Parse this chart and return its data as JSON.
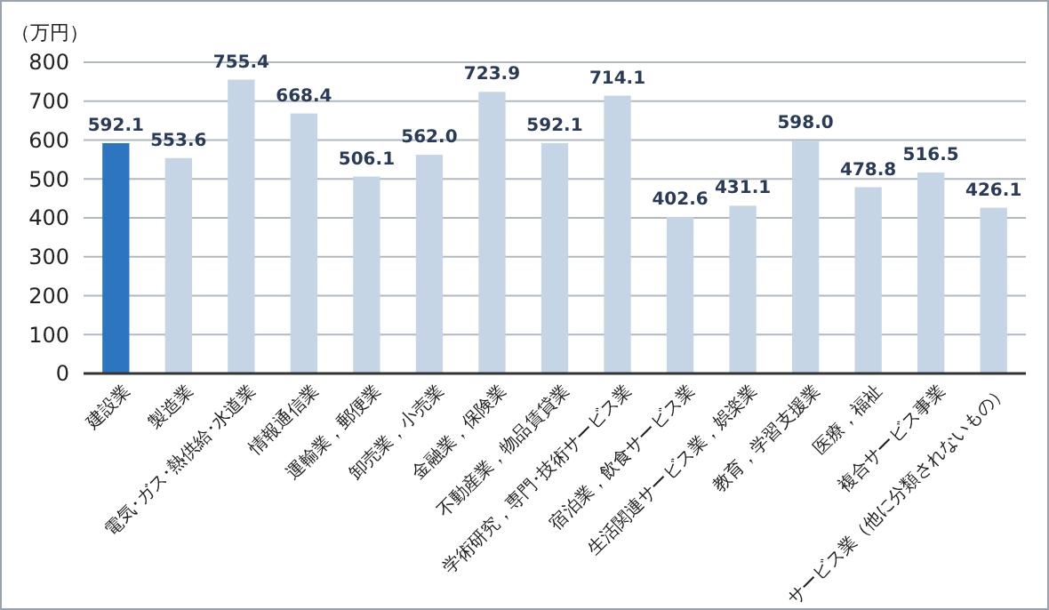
{
  "chart_data": {
    "type": "bar",
    "ylabel": "（万円）",
    "categories": [
      "建設業",
      "製造業",
      "電気･ガス･熱供給･水道業",
      "情報通信業",
      "運輸業，郵便業",
      "卸売業，小売業",
      "金融業，保険業",
      "不動産業，物品賃貸業",
      "学術研究，専門･技術サービス業",
      "宿泊業，飲食サービス業",
      "生活関連サービス業，娯楽業",
      "教育，学習支援業",
      "医療，福祉",
      "複合サービス事業",
      "サービス業（他に分類されないもの）"
    ],
    "values": [
      592.1,
      553.6,
      755.4,
      668.4,
      506.1,
      562.0,
      723.9,
      592.1,
      714.1,
      402.6,
      431.1,
      598.0,
      478.8,
      516.5,
      426.1
    ],
    "colors": [
      "#2e75c0",
      "#c5d5e5",
      "#c5d5e5",
      "#c5d5e5",
      "#c5d5e5",
      "#c5d5e5",
      "#c5d5e5",
      "#c5d5e5",
      "#c5d5e5",
      "#c5d5e5",
      "#c5d5e5",
      "#c5d5e5",
      "#c5d5e5",
      "#c5d5e5",
      "#c5d5e5"
    ],
    "ylim": [
      0,
      800
    ],
    "yticks": [
      0,
      100,
      200,
      300,
      400,
      500,
      600,
      700,
      800
    ],
    "grid": "y",
    "value_labels": [
      "592.1",
      "553.6",
      "755.4",
      "668.4",
      "506.1",
      "562.0",
      "723.9",
      "592.1",
      "714.1",
      "402.6",
      "431.1",
      "598.0",
      "478.8",
      "516.5",
      "426.1"
    ]
  }
}
